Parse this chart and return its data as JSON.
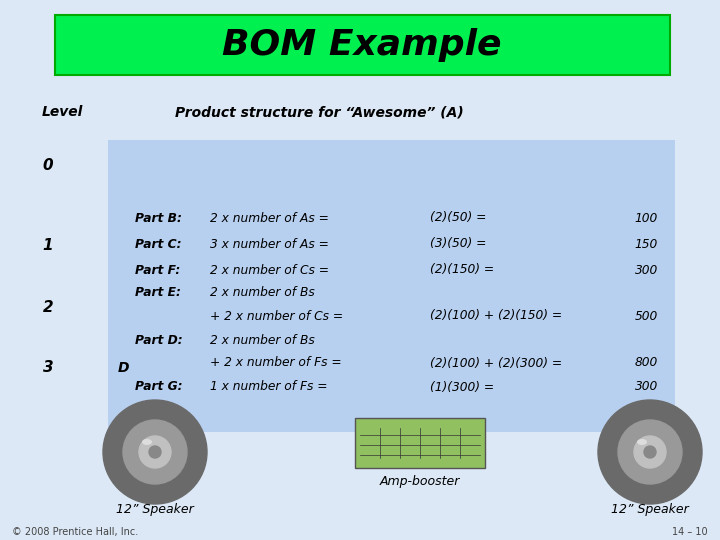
{
  "title": "BOM Example",
  "title_bg": "#00f050",
  "subtitle": "Product structure for “Awesome” (A)",
  "bg_color": "#b8d0f0",
  "slide_bg": "#dce8f5",
  "level_label": "Level",
  "levels": [
    "0",
    "1",
    "2",
    "3"
  ],
  "level3_extra": "D",
  "footer_left": "© 2008 Prentice Hall, Inc.",
  "footer_right": "14 – 10",
  "speaker_left_label": "12” Speaker",
  "speaker_right_label": "12” Speaker",
  "amp_label": "Amp-booster",
  "font_color": "#000000",
  "content_font_size": 8.8,
  "title_font_size": 26
}
